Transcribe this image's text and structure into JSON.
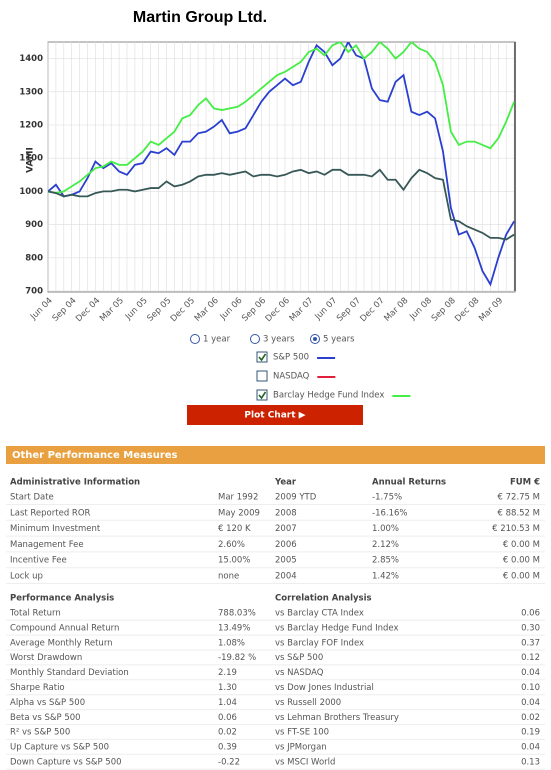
{
  "chart_data": {
    "type": "line",
    "title": "Martin Group Ltd.",
    "y_label": "VAMI",
    "categories": [
      "Jun 04",
      null,
      null,
      "Sep 04",
      null,
      null,
      "Dec 04",
      null,
      null,
      "Mar 05",
      null,
      null,
      "Jun 05",
      null,
      null,
      "Sep 05",
      null,
      null,
      "Dec 05",
      null,
      null,
      "Mar 06",
      null,
      null,
      "Jun 06",
      null,
      null,
      "Sep 06",
      null,
      null,
      "Dec 06",
      null,
      null,
      "Mar 07",
      null,
      null,
      "Jun 07",
      null,
      null,
      "Sep 07",
      null,
      null,
      "Dec 07",
      null,
      null,
      "Mar 08",
      null,
      null,
      "Jun 08",
      null,
      null,
      "Sep 08",
      null,
      null,
      "Dec 08",
      null,
      null,
      "Mar 09",
      null,
      null
    ],
    "ylim": [
      700,
      1450
    ],
    "yticks": [
      700,
      800,
      900,
      1000,
      1100,
      1200,
      1300,
      1400
    ],
    "grid": true,
    "series": [
      {
        "color": "#2a3fd0",
        "values": [
          1000,
          1020,
          985,
          990,
          1000,
          1040,
          1090,
          1070,
          1085,
          1060,
          1050,
          1080,
          1085,
          1120,
          1115,
          1130,
          1110,
          1150,
          1150,
          1175,
          1180,
          1195,
          1215,
          1175,
          1180,
          1190,
          1230,
          1270,
          1300,
          1320,
          1340,
          1320,
          1330,
          1390,
          1440,
          1420,
          1380,
          1400,
          1450,
          1410,
          1400,
          1310,
          1275,
          1270,
          1330,
          1350,
          1240,
          1230,
          1240,
          1220,
          1120,
          950,
          870,
          880,
          830,
          760,
          720,
          800,
          870,
          910
        ]
      },
      {
        "color": "#44ee44",
        "values": [
          1000,
          995,
          1000,
          1015,
          1030,
          1050,
          1070,
          1075,
          1090,
          1080,
          1080,
          1100,
          1120,
          1150,
          1140,
          1160,
          1180,
          1220,
          1230,
          1260,
          1280,
          1250,
          1245,
          1250,
          1255,
          1270,
          1290,
          1310,
          1330,
          1350,
          1360,
          1375,
          1390,
          1420,
          1430,
          1410,
          1440,
          1450,
          1420,
          1440,
          1400,
          1420,
          1450,
          1430,
          1400,
          1420,
          1450,
          1430,
          1420,
          1390,
          1320,
          1180,
          1140,
          1150,
          1150,
          1140,
          1130,
          1160,
          1210,
          1270
        ]
      },
      {
        "color": "#385858",
        "values": [
          1000,
          995,
          985,
          990,
          985,
          985,
          995,
          1000,
          1000,
          1005,
          1005,
          1000,
          1005,
          1010,
          1010,
          1030,
          1015,
          1020,
          1030,
          1045,
          1050,
          1050,
          1055,
          1050,
          1055,
          1060,
          1045,
          1050,
          1050,
          1045,
          1050,
          1060,
          1065,
          1055,
          1060,
          1050,
          1065,
          1065,
          1050,
          1050,
          1050,
          1045,
          1065,
          1035,
          1035,
          1005,
          1040,
          1065,
          1055,
          1040,
          1035,
          915,
          910,
          895,
          885,
          875,
          860,
          860,
          855,
          870
        ]
      }
    ]
  },
  "controls": {
    "periods": [
      "1 year",
      "3 years",
      "5 years"
    ],
    "legend": [
      {
        "label": "S&P 500",
        "color": "#2a3fd0",
        "checked": true
      },
      {
        "label": "NASDAQ",
        "color": "#e0203a",
        "checked": false
      },
      {
        "label": "Barclay Hedge Fund Index",
        "color": "#44ee44",
        "checked": true
      }
    ],
    "button": "Plot Chart ▶"
  },
  "measures": {
    "title": "Other Performance Measures",
    "admin": {
      "heading": "Administrative Information",
      "rows": [
        [
          "Start Date",
          "Mar 1992"
        ],
        [
          "Last Reported ROR",
          "May 2009"
        ],
        [
          "Minimum Investment",
          "€ 120 K"
        ],
        [
          "Management Fee",
          "2.60%"
        ],
        [
          "Incentive Fee",
          "15.00%"
        ],
        [
          "Lock up",
          "none"
        ]
      ]
    },
    "years": {
      "headers": [
        "Year",
        "Annual Returns",
        "FUM €"
      ],
      "rows": [
        [
          "2009 YTD",
          "-1.75%",
          "€ 72.75 M"
        ],
        [
          "2008",
          "-16.16%",
          "€ 88.52 M"
        ],
        [
          "2007",
          "1.00%",
          "€ 210.53 M"
        ],
        [
          "2006",
          "2.12%",
          "€ 0.00 M"
        ],
        [
          "2005",
          "2.85%",
          "€ 0.00 M"
        ],
        [
          "2004",
          "1.42%",
          "€ 0.00 M"
        ]
      ]
    },
    "performance": {
      "heading": "Performance Analysis",
      "rows": [
        [
          "Total Return",
          "788.03%"
        ],
        [
          "Compound Annual Return",
          "13.49%"
        ],
        [
          "Average Monthly Return",
          "1.08%"
        ],
        [
          "Worst Drawdown",
          "-19.82 %"
        ],
        [
          "Monthly Standard Deviation",
          "2.19"
        ],
        [
          "Sharpe Ratio",
          "1.30"
        ],
        [
          "Alpha vs S&P 500",
          "1.04"
        ],
        [
          "Beta vs S&P 500",
          "0.06"
        ],
        [
          "R² vs S&P 500",
          "0.02"
        ],
        [
          "Up Capture vs S&P 500",
          "0.39"
        ],
        [
          "Down Capture vs S&P 500",
          "-0.22"
        ]
      ]
    },
    "correlation": {
      "heading": "Correlation Analysis",
      "rows": [
        [
          "vs Barclay CTA Index",
          "0.06"
        ],
        [
          "vs Barclay Hedge Fund Index",
          "0.30"
        ],
        [
          "vs Barclay FOF Index",
          "0.37"
        ],
        [
          "vs S&P 500",
          "0.12"
        ],
        [
          "vs NASDAQ",
          "0.04"
        ],
        [
          "vs Dow Jones Industrial",
          "0.10"
        ],
        [
          "vs Russell 2000",
          "0.04"
        ],
        [
          "vs Lehman Brothers Treasury",
          "0.02"
        ],
        [
          "vs FT-SE 100",
          "0.19"
        ],
        [
          "vs JPMorgan",
          "0.04"
        ],
        [
          "vs MSCI World",
          "0.13"
        ]
      ]
    }
  }
}
